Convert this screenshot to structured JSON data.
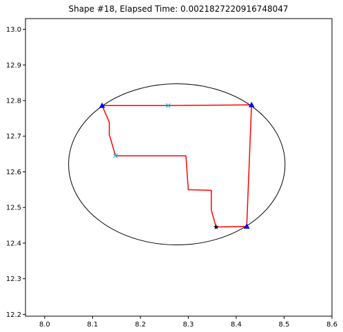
{
  "chart_data": {
    "type": "line",
    "title": "Shape #18, Elapsed Time: 0.0021827220916748047",
    "xlabel": "",
    "ylabel": "",
    "xlim": [
      7.96,
      8.6
    ],
    "ylim": [
      12.195,
      13.03
    ],
    "x_ticks": [
      "8.0",
      "8.1",
      "8.2",
      "8.3",
      "8.4",
      "8.5",
      "8.6"
    ],
    "y_ticks": [
      "12.2",
      "12.3",
      "12.4",
      "12.5",
      "12.6",
      "12.7",
      "12.8",
      "12.9",
      "13.0"
    ],
    "grid": false,
    "series": [
      {
        "kind": "ellipse",
        "color": "#000000",
        "center": [
          8.276,
          12.621
        ],
        "radii": [
          0.226,
          0.226
        ]
      },
      {
        "kind": "path",
        "color": "#ff0000",
        "points": [
          [
            8.12,
            12.786
          ],
          [
            8.135,
            12.739
          ],
          [
            8.135,
            12.705
          ],
          [
            8.148,
            12.645
          ],
          [
            8.295,
            12.645
          ],
          [
            8.3,
            12.55
          ],
          [
            8.348,
            12.548
          ],
          [
            8.348,
            12.493
          ],
          [
            8.358,
            12.445
          ],
          [
            8.422,
            12.447
          ],
          [
            8.432,
            12.788
          ],
          [
            8.258,
            12.786
          ],
          [
            8.12,
            12.786
          ]
        ]
      },
      {
        "kind": "markers",
        "marker": "triangle",
        "color": "#0000ff",
        "points": [
          [
            8.12,
            12.786
          ],
          [
            8.432,
            12.788
          ],
          [
            8.422,
            12.447
          ]
        ]
      },
      {
        "kind": "markers",
        "marker": "x",
        "color": "#17becf",
        "points": [
          [
            8.258,
            12.786
          ],
          [
            8.148,
            12.645
          ]
        ]
      },
      {
        "kind": "markers",
        "marker": "star",
        "color": "#000000",
        "points": [
          [
            8.358,
            12.445
          ]
        ]
      }
    ]
  }
}
